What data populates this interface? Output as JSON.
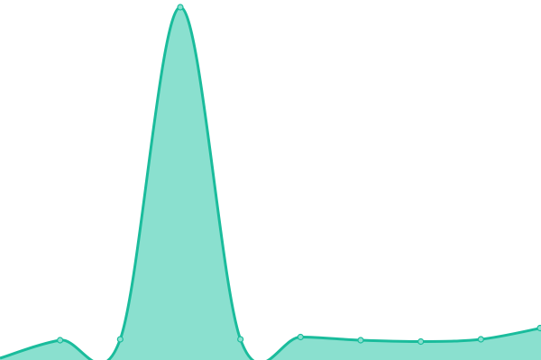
{
  "chart_data": {
    "type": "area",
    "title": "",
    "xlabel": "",
    "ylabel": "",
    "x": [
      0,
      1,
      2,
      3,
      4,
      5,
      6,
      7,
      8,
      9
    ],
    "values": [
      2,
      22,
      23,
      392,
      23,
      25.5,
      22,
      20.5,
      23,
      35.5
    ],
    "ylim": [
      0,
      400
    ],
    "grid": false,
    "axes_visible": false,
    "curve": "smooth",
    "colors": {
      "line": "#1abc9c",
      "fill": "#8ae0cf",
      "point": "#8ae0cf"
    }
  }
}
